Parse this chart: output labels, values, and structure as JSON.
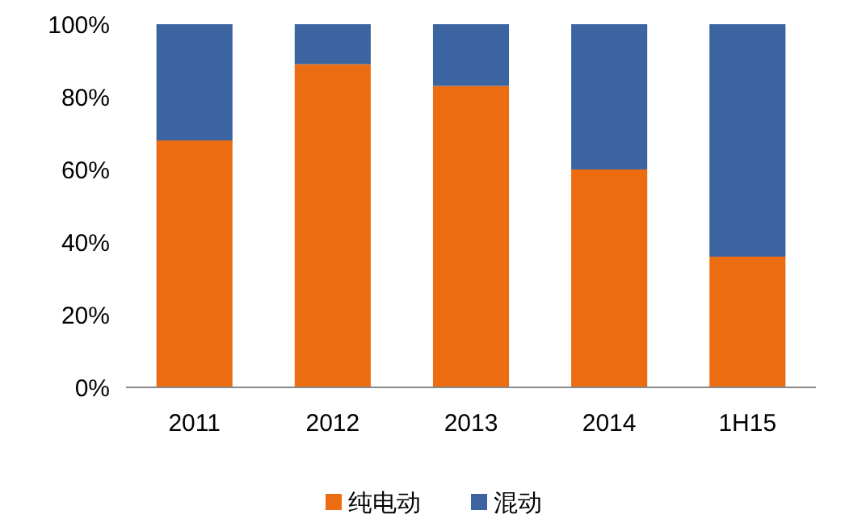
{
  "chart_data": {
    "type": "bar",
    "stacked": true,
    "categories": [
      "2011",
      "2012",
      "2013",
      "2014",
      "1H15"
    ],
    "series": [
      {
        "name": "纯电动",
        "color": "#ec6c12",
        "values": [
          68,
          89,
          83,
          60,
          36
        ]
      },
      {
        "name": "混动",
        "color": "#3b64a0",
        "values": [
          32,
          11,
          17,
          40,
          64
        ]
      }
    ],
    "ylim": [
      0,
      100
    ],
    "yticks": [
      {
        "value": 0,
        "label": "0%"
      },
      {
        "value": 20,
        "label": "20%"
      },
      {
        "value": 40,
        "label": "40%"
      },
      {
        "value": 60,
        "label": "60%"
      },
      {
        "value": 80,
        "label": "80%"
      },
      {
        "value": 100,
        "label": "100%"
      }
    ],
    "grid": false,
    "legend": "bottom"
  }
}
